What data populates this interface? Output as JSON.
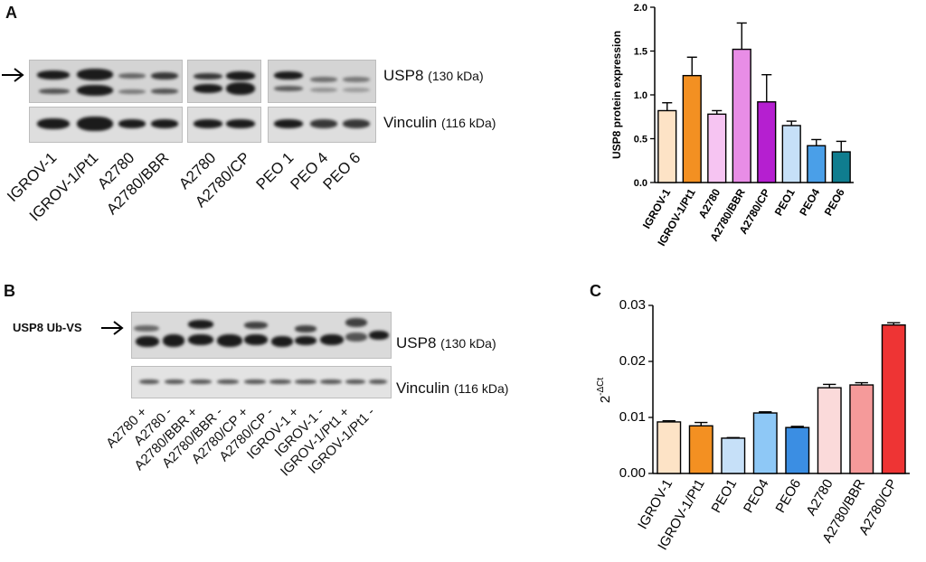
{
  "panelA": {
    "letter": "A",
    "usp8_label": "USP8",
    "usp8_kda": "(130 kDa)",
    "vinculin_label": "Vinculin",
    "vinculin_kda": "(116 kDa)",
    "lanes_group1": [
      "IGROV-1",
      "IGROV-1/Pt1",
      "A2780",
      "A2780/BBR"
    ],
    "lanes_group2": [
      "A2780",
      "A2780/CP"
    ],
    "lanes_group3": [
      "PEO 1",
      "PEO 4",
      "PEO 6"
    ]
  },
  "panelB": {
    "letter": "B",
    "ubvs_label": "USP8 Ub-VS",
    "usp8_label": "USP8",
    "usp8_kda": "(130 kDa)",
    "vinculin_label": "Vinculin",
    "vinculin_kda": "(116 kDa)",
    "lanes": [
      "A2780 +",
      "A2780 -",
      "A2780/BBR +",
      "A2780/BBR -",
      "A2780/CP +",
      "A2780/CP -",
      "IGROV-1 +",
      "IGROV-1 -",
      "IGROV-1/Pt1 +",
      "IGROV-1/Pt1 -"
    ]
  },
  "panelC": {
    "letter": "C"
  },
  "colors": {
    "IGROV-1": "#fde3c6",
    "IGROV-1/Pt1": "#f39022",
    "A2780": "#f6c4f2",
    "A2780/BBR": "#e88de6",
    "A2780/CP": "#b51fd0",
    "PEO1": "#c6e0f8",
    "PEO4": "#4a9fe8",
    "PEO6": "#0f7d8f",
    "C_A2780": "#fbdada",
    "C_A2780/BBR": "#f59a9a",
    "C_A2780/CP": "#ee3434",
    "C_PEO4": "#8ec8f6",
    "C_PEO6": "#3b8ee3"
  },
  "chart_data": [
    {
      "type": "bar",
      "ylabel": "USP8 protein expression",
      "ylim": [
        0,
        2.0
      ],
      "yticks": [
        "0.0",
        "0.5",
        "1.0",
        "1.5",
        "2.0"
      ],
      "categories": [
        "IGROV-1",
        "IGROV-1/Pt1",
        "A2780",
        "A2780/BBR",
        "A2780/CP",
        "PEO1",
        "PEO4",
        "PEO6"
      ],
      "values": [
        0.82,
        1.22,
        0.78,
        1.52,
        0.92,
        0.65,
        0.42,
        0.35
      ],
      "errors": [
        0.09,
        0.21,
        0.04,
        0.3,
        0.31,
        0.05,
        0.07,
        0.12
      ]
    },
    {
      "type": "bar",
      "ylabel_base": "2",
      "ylabel_sup": "-ΔCt",
      "ylim": [
        0,
        0.03
      ],
      "yticks": [
        "0.00",
        "0.01",
        "0.02",
        "0.03"
      ],
      "categories": [
        "IGROV-1",
        "IGROV-1/Pt1",
        "PEO1",
        "PEO4",
        "PEO6",
        "A2780",
        "A2780/BBR",
        "A2780/CP"
      ],
      "values": [
        0.0092,
        0.0085,
        0.0063,
        0.0108,
        0.0082,
        0.0153,
        0.0158,
        0.0265
      ],
      "errors": [
        0.0002,
        0.0006,
        0.0001,
        0.0002,
        0.0002,
        0.0006,
        0.0004,
        0.0004
      ]
    }
  ]
}
